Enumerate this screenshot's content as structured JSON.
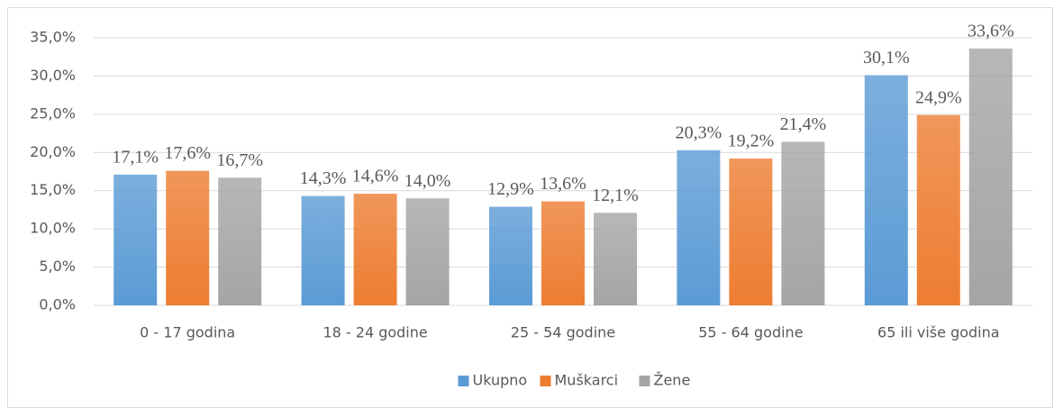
{
  "chart_data": {
    "type": "bar",
    "categories": [
      "0 - 17 godina",
      "18 - 24 godine",
      "25 - 54 godine",
      "55 - 64 godine",
      "65 ili više godina"
    ],
    "series": [
      {
        "name": "Ukupno",
        "color": "#5b9bd5",
        "values": [
          17.1,
          14.3,
          12.9,
          20.3,
          30.1
        ],
        "value_labels": [
          "17,1%",
          "14,3%",
          "12,9%",
          "20,3%",
          "30,1%"
        ]
      },
      {
        "name": "Muškarci",
        "color": "#ed7d31",
        "values": [
          17.6,
          14.6,
          13.6,
          19.2,
          24.9
        ],
        "value_labels": [
          "17,6%",
          "14,6%",
          "13,6%",
          "19,2%",
          "24,9%"
        ]
      },
      {
        "name": "Žene",
        "color": "#a5a5a5",
        "values": [
          16.7,
          14.0,
          12.1,
          21.4,
          33.6
        ],
        "value_labels": [
          "16,7%",
          "14,0%",
          "12,1%",
          "21,4%",
          "33,6%"
        ]
      }
    ],
    "ylim": [
      0,
      35
    ],
    "yticks": [
      {
        "value": 0,
        "label": "0,0%"
      },
      {
        "value": 5,
        "label": "5,0%"
      },
      {
        "value": 10,
        "label": "10,0%"
      },
      {
        "value": 15,
        "label": "15,0%"
      },
      {
        "value": 20,
        "label": "20,0%"
      },
      {
        "value": 25,
        "label": "25,0%"
      },
      {
        "value": 30,
        "label": "30,0%"
      },
      {
        "value": 35,
        "label": "35,0%"
      }
    ],
    "grid": true,
    "legend": "bottom"
  }
}
